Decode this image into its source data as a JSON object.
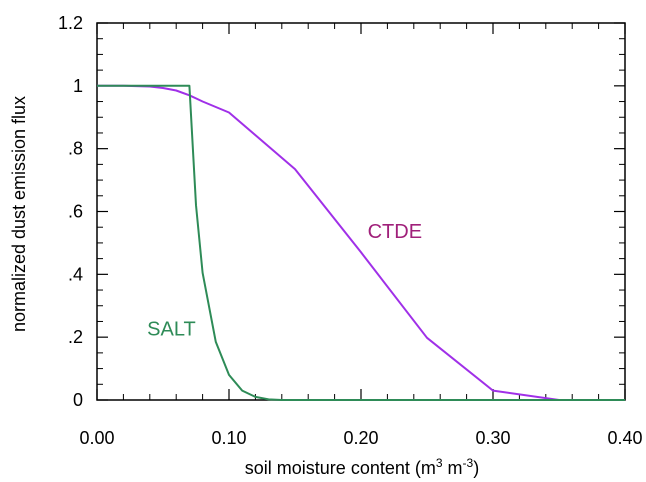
{
  "chart_data": {
    "type": "line",
    "title": "",
    "xlabel": "soil moisture content (m",
    "xlabel_sup1": "3",
    "xlabel_mid": " m",
    "xlabel_sup2": "-3",
    "xlabel_end": ")",
    "ylabel": "normalized dust emission flux",
    "xlim": [
      0,
      0.4
    ],
    "ylim": [
      0,
      1.2
    ],
    "x_ticks": [
      0,
      0.1,
      0.2,
      0.3,
      0.4
    ],
    "x_tick_labels": [
      "0.00",
      "0.10",
      "0.20",
      "0.30",
      "0.40"
    ],
    "y_ticks": [
      0,
      0.2,
      0.4,
      0.6,
      0.8,
      1.0,
      1.2
    ],
    "y_tick_labels": [
      "0",
      ".2",
      ".4",
      ".6",
      ".8",
      "1",
      "1.2"
    ],
    "grid": false,
    "series": [
      {
        "name": "CTDE",
        "color": "#a030e8",
        "label_color": "#a0207a",
        "label_at": [
          0.205,
          0.515
        ],
        "x": [
          0,
          0.02,
          0.04,
          0.05,
          0.06,
          0.07,
          0.075,
          0.08,
          0.1,
          0.15,
          0.2,
          0.25,
          0.3,
          0.35,
          0.4
        ],
        "y": [
          1.0,
          1.0,
          0.998,
          0.993,
          0.985,
          0.97,
          0.96,
          0.95,
          0.915,
          0.735,
          0.47,
          0.198,
          0.03,
          0.0,
          0.0
        ]
      },
      {
        "name": "SALT",
        "color": "#2e8b57",
        "label_color": "#2e8b57",
        "label_at": [
          0.038,
          0.205
        ],
        "x": [
          0,
          0.07,
          0.075,
          0.08,
          0.09,
          0.1,
          0.11,
          0.12,
          0.13,
          0.14,
          0.2,
          0.4
        ],
        "y": [
          1.0,
          1.0,
          0.62,
          0.405,
          0.185,
          0.08,
          0.03,
          0.01,
          0.002,
          0.0,
          0.0,
          0.0
        ]
      }
    ]
  }
}
